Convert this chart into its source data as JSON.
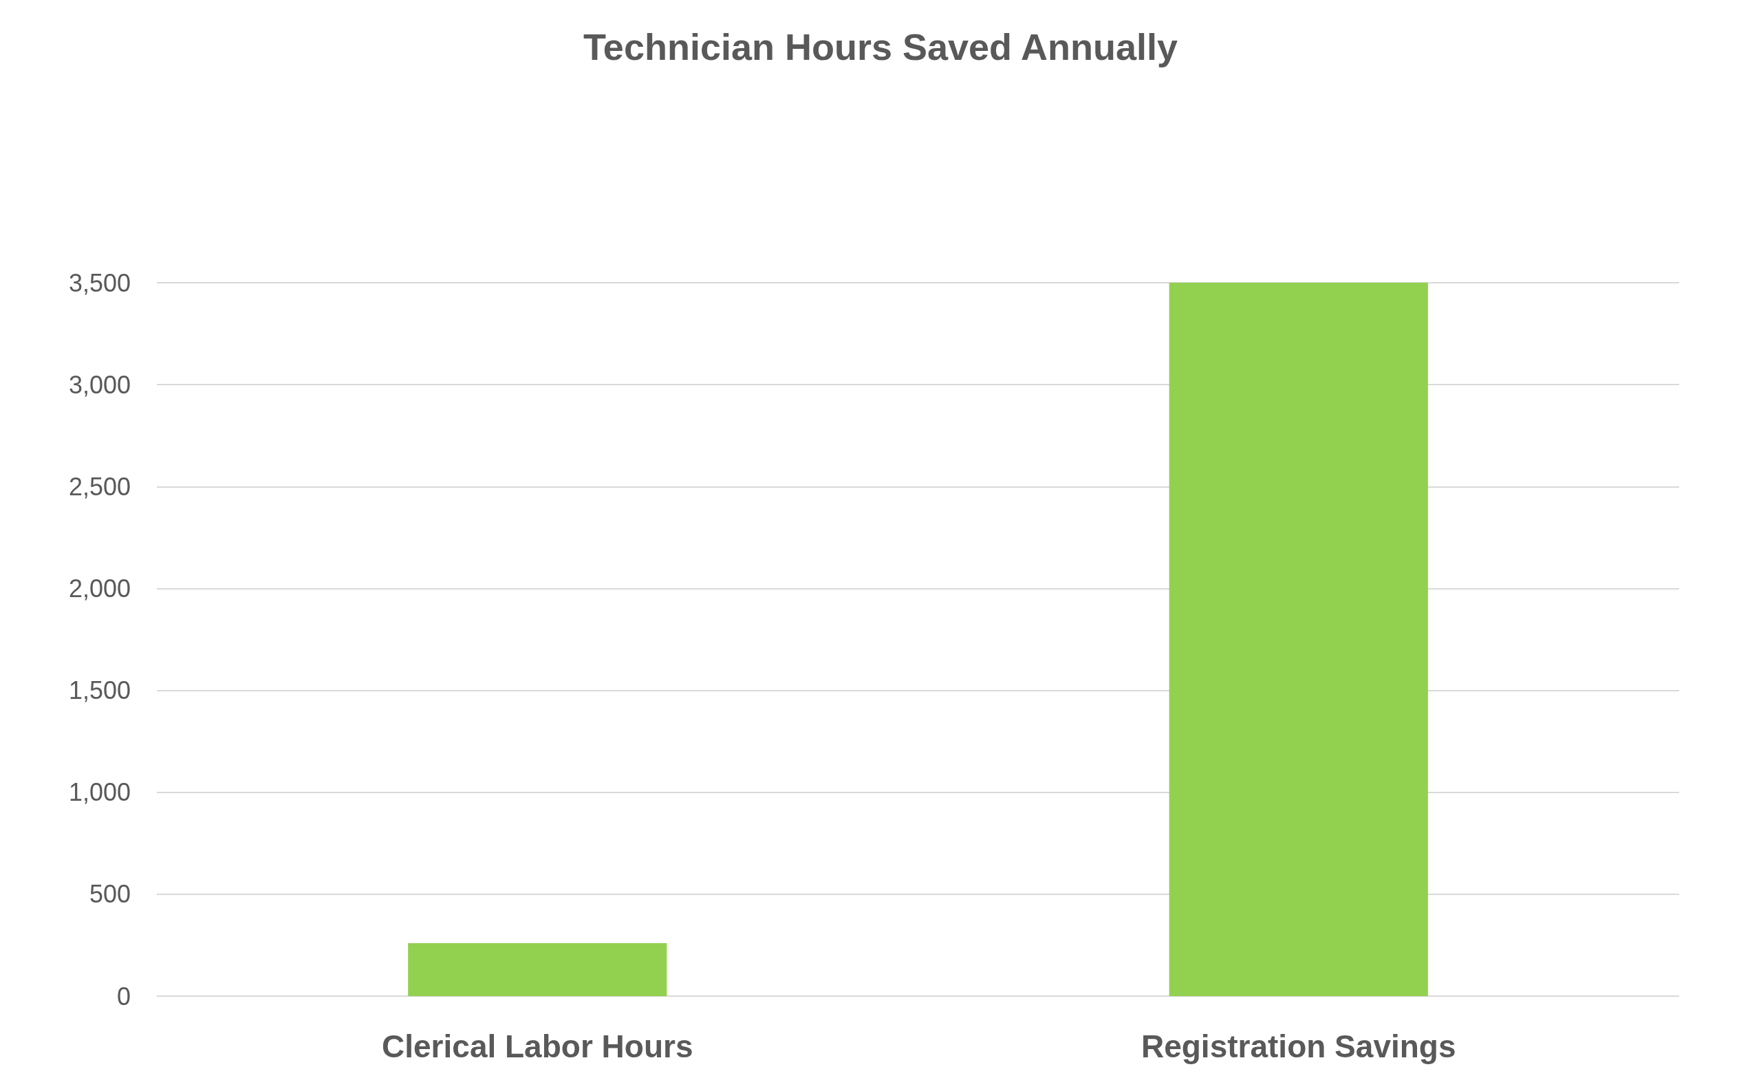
{
  "chart_data": {
    "type": "bar",
    "title": "Technician Hours Saved Annually",
    "categories": [
      "Clerical Labor Hours",
      "Registration Savings"
    ],
    "values": [
      260,
      3500
    ],
    "color": "#92d050",
    "ylim": [
      0,
      3500
    ],
    "yticks": [
      0,
      {
        "value": 500,
        "label": "500"
      },
      {
        "value": 1000,
        "label": "1,000"
      },
      {
        "value": 1500,
        "label": "1,500"
      },
      {
        "value": 2000,
        "label": "2,000"
      },
      {
        "value": 2500,
        "label": "2,500"
      },
      {
        "value": 3000,
        "label": "3,000"
      },
      {
        "value": 3500,
        "label": "3,500"
      }
    ],
    "grid": "y"
  }
}
